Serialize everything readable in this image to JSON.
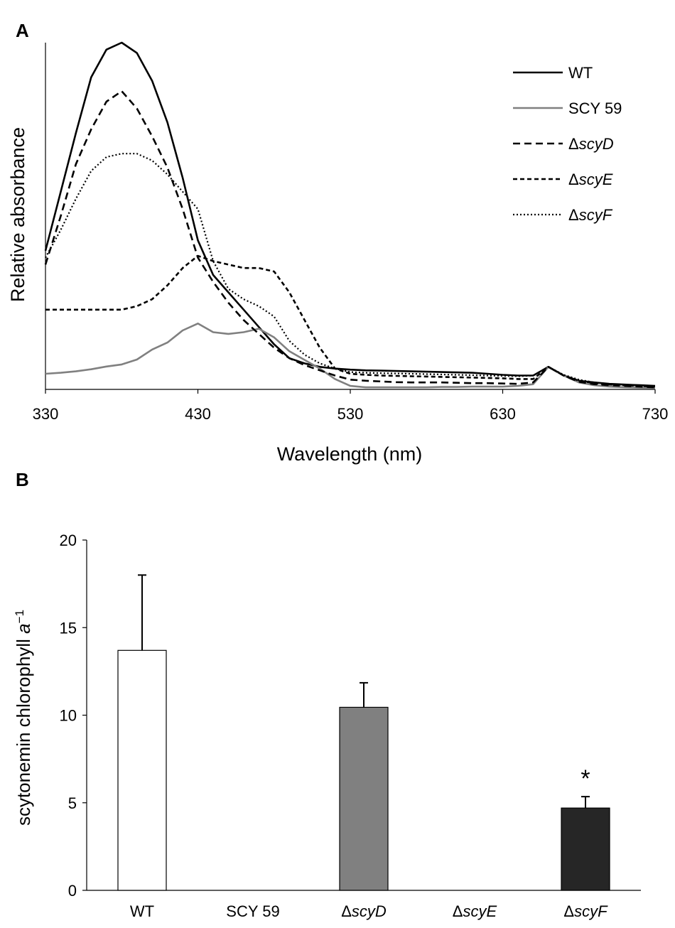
{
  "chart_data": [
    {
      "panel_label": "A",
      "type": "line",
      "xlabel": "Wavelength (nm)",
      "ylabel": "Relative absorbance",
      "xlim": [
        330,
        730
      ],
      "ylim": [
        0,
        1
      ],
      "xticks": [
        330,
        430,
        530,
        630,
        730
      ],
      "grid": false,
      "legend_position": "top-right",
      "series": [
        {
          "name": "WT",
          "prefix": "",
          "italic": "",
          "style": "solid",
          "color": "#000000",
          "x": [
            330,
            340,
            350,
            360,
            370,
            380,
            390,
            400,
            410,
            420,
            430,
            440,
            450,
            460,
            470,
            480,
            490,
            500,
            510,
            520,
            530,
            540,
            550,
            560,
            570,
            580,
            590,
            600,
            610,
            620,
            630,
            640,
            650,
            660,
            670,
            680,
            690,
            700,
            710,
            720,
            730
          ],
          "y": [
            0.4,
            0.57,
            0.74,
            0.9,
            0.98,
            1.0,
            0.97,
            0.89,
            0.77,
            0.61,
            0.43,
            0.33,
            0.28,
            0.23,
            0.18,
            0.13,
            0.09,
            0.075,
            0.065,
            0.06,
            0.057,
            0.055,
            0.054,
            0.053,
            0.052,
            0.051,
            0.05,
            0.049,
            0.048,
            0.045,
            0.042,
            0.04,
            0.04,
            0.065,
            0.04,
            0.025,
            0.02,
            0.016,
            0.014,
            0.012,
            0.01
          ]
        },
        {
          "name": "SCY 59",
          "prefix": "",
          "italic": "",
          "style": "gray",
          "color": "#808080",
          "x": [
            330,
            340,
            350,
            360,
            370,
            380,
            390,
            400,
            410,
            420,
            430,
            440,
            450,
            460,
            470,
            480,
            490,
            500,
            510,
            520,
            530,
            540,
            550,
            560,
            570,
            580,
            590,
            600,
            610,
            620,
            630,
            640,
            650,
            660,
            670,
            680,
            690,
            700,
            710,
            720,
            730
          ],
          "y": [
            0.045,
            0.048,
            0.052,
            0.058,
            0.066,
            0.072,
            0.086,
            0.115,
            0.135,
            0.17,
            0.19,
            0.165,
            0.16,
            0.165,
            0.175,
            0.15,
            0.11,
            0.085,
            0.06,
            0.03,
            0.01,
            0.006,
            0.006,
            0.006,
            0.006,
            0.006,
            0.007,
            0.007,
            0.008,
            0.008,
            0.008,
            0.01,
            0.015,
            0.065,
            0.04,
            0.02,
            0.012,
            0.008,
            0.006,
            0.005,
            0.004
          ]
        },
        {
          "name": "scyD",
          "prefix": "Δ",
          "italic": "scyD",
          "style": "dashed",
          "color": "#000000",
          "x": [
            330,
            340,
            350,
            360,
            370,
            380,
            390,
            400,
            410,
            420,
            430,
            440,
            450,
            460,
            470,
            480,
            490,
            500,
            510,
            520,
            530,
            540,
            550,
            560,
            570,
            580,
            590,
            600,
            610,
            620,
            630,
            640,
            650,
            660,
            670,
            680,
            690,
            700,
            710,
            720,
            730
          ],
          "y": [
            0.36,
            0.5,
            0.65,
            0.75,
            0.83,
            0.86,
            0.81,
            0.73,
            0.64,
            0.52,
            0.38,
            0.31,
            0.25,
            0.2,
            0.16,
            0.12,
            0.09,
            0.07,
            0.055,
            0.04,
            0.028,
            0.025,
            0.023,
            0.021,
            0.02,
            0.02,
            0.02,
            0.019,
            0.018,
            0.018,
            0.017,
            0.016,
            0.02,
            0.065,
            0.04,
            0.022,
            0.015,
            0.012,
            0.01,
            0.008,
            0.006
          ]
        },
        {
          "name": "scyE",
          "prefix": "Δ",
          "italic": "scyE",
          "style": "shortdashed",
          "color": "#000000",
          "x": [
            330,
            340,
            350,
            360,
            370,
            380,
            390,
            400,
            410,
            420,
            430,
            440,
            450,
            460,
            470,
            480,
            490,
            500,
            510,
            520,
            530,
            540,
            550,
            560,
            570,
            580,
            590,
            600,
            610,
            620,
            630,
            640,
            650,
            660,
            670,
            680,
            690,
            700,
            710,
            720,
            730
          ],
          "y": [
            0.23,
            0.23,
            0.23,
            0.23,
            0.23,
            0.23,
            0.24,
            0.26,
            0.3,
            0.35,
            0.385,
            0.37,
            0.36,
            0.35,
            0.35,
            0.34,
            0.28,
            0.2,
            0.12,
            0.06,
            0.045,
            0.042,
            0.04,
            0.039,
            0.038,
            0.037,
            0.036,
            0.035,
            0.034,
            0.033,
            0.032,
            0.03,
            0.03,
            0.065,
            0.04,
            0.025,
            0.018,
            0.014,
            0.012,
            0.01,
            0.008
          ]
        },
        {
          "name": "scyF",
          "prefix": "Δ",
          "italic": "scyF",
          "style": "dotted",
          "color": "#000000",
          "x": [
            330,
            340,
            350,
            360,
            370,
            380,
            390,
            400,
            410,
            420,
            430,
            440,
            450,
            460,
            470,
            480,
            490,
            500,
            510,
            520,
            530,
            540,
            550,
            560,
            570,
            580,
            590,
            600,
            610,
            620,
            630,
            640,
            650,
            660,
            670,
            680,
            690,
            700,
            710,
            720,
            730
          ],
          "y": [
            0.38,
            0.46,
            0.55,
            0.63,
            0.67,
            0.68,
            0.68,
            0.66,
            0.62,
            0.57,
            0.52,
            0.37,
            0.29,
            0.26,
            0.24,
            0.21,
            0.14,
            0.1,
            0.075,
            0.06,
            0.05,
            0.048,
            0.047,
            0.046,
            0.045,
            0.044,
            0.043,
            0.042,
            0.041,
            0.04,
            0.039,
            0.038,
            0.04,
            0.065,
            0.042,
            0.028,
            0.02,
            0.016,
            0.013,
            0.011,
            0.009
          ]
        }
      ]
    },
    {
      "panel_label": "B",
      "type": "bar",
      "ylabel_prefix": "scytonemin chlorophyll ",
      "ylabel_italic": "a",
      "ylabel_sup": "−1",
      "ylim": [
        0,
        20
      ],
      "yticks": [
        0,
        5,
        10,
        15,
        20
      ],
      "grid": false,
      "categories": [
        {
          "prefix": "",
          "italic": "",
          "plain": "WT"
        },
        {
          "prefix": "",
          "italic": "",
          "plain": "SCY 59"
        },
        {
          "prefix": "Δ",
          "italic": "scyD",
          "plain": ""
        },
        {
          "prefix": "Δ",
          "italic": "scyE",
          "plain": ""
        },
        {
          "prefix": "Δ",
          "italic": "scyF",
          "plain": ""
        }
      ],
      "values": [
        13.7,
        0,
        10.45,
        0,
        4.7
      ],
      "errors": [
        4.3,
        0,
        1.4,
        0,
        0.65
      ],
      "colors": [
        "#ffffff",
        "#ffffff",
        "#808080",
        "#ffffff",
        "#262626"
      ],
      "annotations": [
        {
          "category_index": 4,
          "text": "*"
        }
      ]
    }
  ]
}
